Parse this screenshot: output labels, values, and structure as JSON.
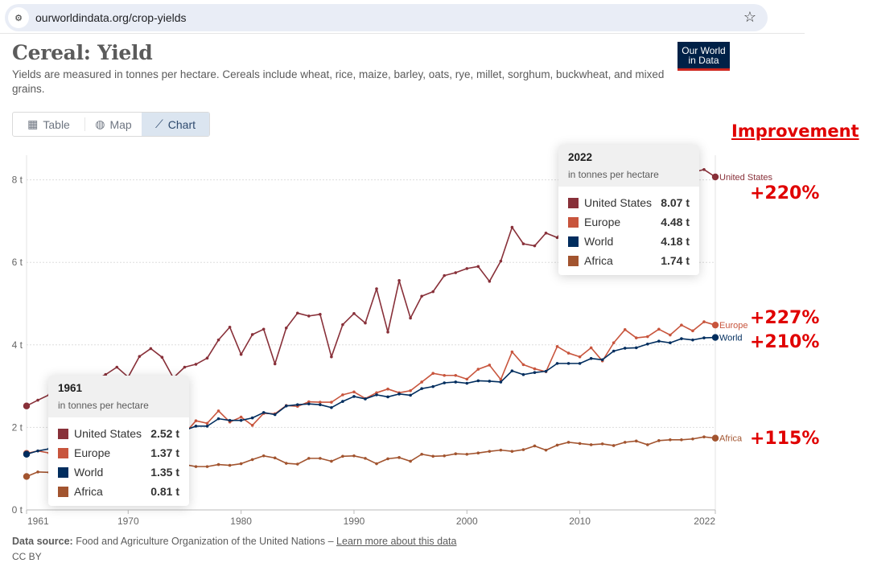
{
  "browser": {
    "url": "ourworldindata.org/crop-yields",
    "site_icon": "site-settings-icon",
    "bookmark_icon": "star-icon"
  },
  "header": {
    "title": "Cereal: Yield",
    "subtitle": "Yields are measured in tonnes per hectare. Cereals include wheat, rice, maize, barley, oats, rye, millet, sorghum, buckwheat, and mixed grains.",
    "logo_line1": "Our World",
    "logo_line2": "in Data"
  },
  "tabs": [
    {
      "label": "Table",
      "icon": "table-icon",
      "active": false
    },
    {
      "label": "Map",
      "icon": "globe-icon",
      "active": false
    },
    {
      "label": "Chart",
      "icon": "line-chart-icon",
      "active": true
    }
  ],
  "annotations": {
    "heading": "Improvement",
    "united_states": "+220%",
    "europe": "+227%",
    "world": "+210%",
    "africa": "+115%"
  },
  "tooltips": [
    {
      "year": "1961",
      "unit": "in tonnes per hectare",
      "rows": [
        {
          "name": "United States",
          "value": "2.52 t",
          "color": "#883039"
        },
        {
          "name": "Europe",
          "value": "1.37 t",
          "color": "#c8553d"
        },
        {
          "name": "World",
          "value": "1.35 t",
          "color": "#002d5e"
        },
        {
          "name": "Africa",
          "value": "0.81 t",
          "color": "#a2542f"
        }
      ]
    },
    {
      "year": "2022",
      "unit": "in tonnes per hectare",
      "rows": [
        {
          "name": "United States",
          "value": "8.07 t",
          "color": "#883039"
        },
        {
          "name": "Europe",
          "value": "4.48 t",
          "color": "#c8553d"
        },
        {
          "name": "World",
          "value": "4.18 t",
          "color": "#002d5e"
        },
        {
          "name": "Africa",
          "value": "1.74 t",
          "color": "#a2542f"
        }
      ]
    }
  ],
  "footer": {
    "source_label": "Data source:",
    "source_text": "Food and Agriculture Organization of the United Nations –",
    "link": "Learn more about this data",
    "license": "CC BY"
  },
  "chart_data": {
    "type": "line",
    "title": "Cereal: Yield",
    "xlabel": "",
    "ylabel": "tonnes per hectare",
    "x": [
      1961,
      1962,
      1963,
      1964,
      1965,
      1966,
      1967,
      1968,
      1969,
      1970,
      1971,
      1972,
      1973,
      1974,
      1975,
      1976,
      1977,
      1978,
      1979,
      1980,
      1981,
      1982,
      1983,
      1984,
      1985,
      1986,
      1987,
      1988,
      1989,
      1990,
      1991,
      1992,
      1993,
      1994,
      1995,
      1996,
      1997,
      1998,
      1999,
      2000,
      2001,
      2002,
      2003,
      2004,
      2005,
      2006,
      2007,
      2008,
      2009,
      2010,
      2011,
      2012,
      2013,
      2014,
      2015,
      2016,
      2017,
      2018,
      2019,
      2020,
      2021,
      2022
    ],
    "xlim": [
      1961,
      2022
    ],
    "ylim": [
      0,
      8.5
    ],
    "x_ticks": [
      "1961",
      "1970",
      "1980",
      "1990",
      "2000",
      "2010",
      "2022"
    ],
    "x_tick_values": [
      1961,
      1970,
      1980,
      1990,
      2000,
      2010,
      2022
    ],
    "y_ticks": [
      "0 t",
      "2 t",
      "4 t",
      "6 t",
      "8 t"
    ],
    "y_tick_values": [
      0,
      2,
      4,
      6,
      8
    ],
    "grid": true,
    "legend": "inline-right",
    "series": [
      {
        "name": "United States",
        "color": "#883039",
        "values": [
          2.52,
          2.66,
          2.79,
          2.66,
          2.98,
          3.05,
          3.14,
          3.28,
          3.46,
          3.22,
          3.72,
          3.91,
          3.7,
          3.2,
          3.46,
          3.53,
          3.68,
          4.12,
          4.43,
          3.77,
          4.25,
          4.38,
          3.54,
          4.41,
          4.77,
          4.7,
          4.74,
          3.71,
          4.49,
          4.76,
          4.53,
          5.36,
          4.31,
          5.56,
          4.65,
          5.18,
          5.29,
          5.68,
          5.75,
          5.85,
          5.9,
          5.54,
          6.03,
          6.85,
          6.45,
          6.4,
          6.71,
          6.6,
          7.0,
          6.99,
          6.75,
          6.22,
          7.1,
          7.6,
          7.6,
          8.15,
          8.28,
          8.1,
          7.97,
          8.18,
          8.25,
          8.07
        ]
      },
      {
        "name": "Europe",
        "color": "#c8553d",
        "values": [
          1.37,
          1.43,
          1.38,
          1.5,
          1.56,
          1.73,
          1.72,
          1.86,
          1.83,
          1.78,
          1.98,
          1.98,
          2.1,
          2.02,
          1.85,
          2.16,
          2.1,
          2.4,
          2.13,
          2.25,
          2.05,
          2.34,
          2.33,
          2.53,
          2.51,
          2.62,
          2.61,
          2.61,
          2.79,
          2.86,
          2.7,
          2.84,
          2.93,
          2.84,
          2.89,
          3.1,
          3.31,
          3.26,
          3.26,
          3.17,
          3.41,
          3.51,
          3.16,
          3.83,
          3.52,
          3.42,
          3.35,
          3.96,
          3.8,
          3.71,
          3.93,
          3.61,
          4.05,
          4.37,
          4.17,
          4.2,
          4.38,
          4.24,
          4.48,
          4.34,
          4.56,
          4.48
        ]
      },
      {
        "name": "World",
        "color": "#002d5e",
        "values": [
          1.35,
          1.43,
          1.48,
          1.48,
          1.52,
          1.62,
          1.7,
          1.78,
          1.8,
          1.8,
          1.93,
          1.9,
          1.97,
          1.93,
          1.93,
          2.03,
          2.03,
          2.21,
          2.17,
          2.17,
          2.23,
          2.36,
          2.31,
          2.52,
          2.55,
          2.57,
          2.55,
          2.48,
          2.63,
          2.75,
          2.69,
          2.79,
          2.74,
          2.81,
          2.78,
          2.94,
          2.99,
          3.08,
          3.1,
          3.07,
          3.13,
          3.12,
          3.1,
          3.37,
          3.28,
          3.33,
          3.36,
          3.55,
          3.55,
          3.55,
          3.67,
          3.64,
          3.85,
          3.92,
          3.93,
          4.02,
          4.09,
          4.05,
          4.15,
          4.12,
          4.17,
          4.18
        ]
      },
      {
        "name": "Africa",
        "color": "#a2542f",
        "values": [
          0.81,
          0.92,
          0.91,
          0.96,
          0.94,
          0.9,
          0.98,
          0.98,
          0.92,
          0.99,
          1.04,
          1.01,
          0.97,
          1.06,
          1.1,
          1.05,
          1.05,
          1.1,
          1.08,
          1.12,
          1.22,
          1.31,
          1.26,
          1.13,
          1.11,
          1.25,
          1.25,
          1.18,
          1.3,
          1.31,
          1.25,
          1.12,
          1.24,
          1.27,
          1.18,
          1.35,
          1.3,
          1.31,
          1.36,
          1.35,
          1.38,
          1.42,
          1.45,
          1.42,
          1.46,
          1.55,
          1.45,
          1.57,
          1.64,
          1.61,
          1.58,
          1.6,
          1.56,
          1.64,
          1.67,
          1.58,
          1.68,
          1.7,
          1.7,
          1.72,
          1.77,
          1.74
        ]
      }
    ]
  }
}
